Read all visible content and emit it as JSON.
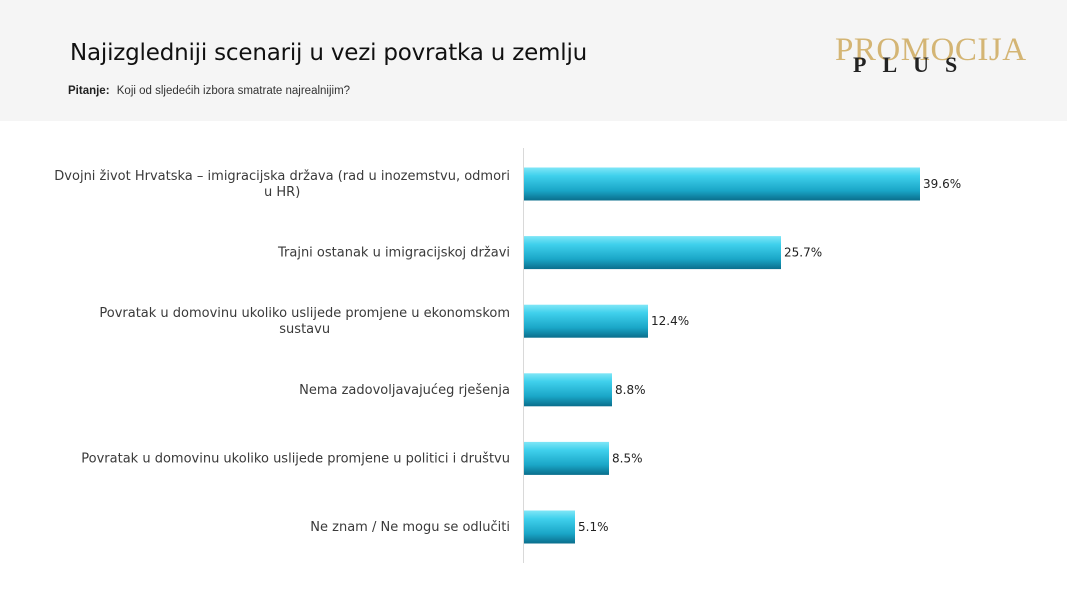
{
  "header": {
    "title": "Najizgledniji scenarij u vezi povratka u zemlju",
    "question_label": "Pitanje:",
    "question_text": "Koji od sljedećih izbora smatrate najrealnijim?"
  },
  "logo": {
    "main": "PROMOCIJA",
    "sub": "PLUS"
  },
  "colors": {
    "bar_light": "#3fd0ec",
    "bar_dark": "#0a6e8c",
    "header_bg": "#f5f5f5",
    "logo_gold": "#d4b574"
  },
  "chart_data": {
    "type": "bar",
    "orientation": "horizontal",
    "title": "Najizgledniji scenarij u vezi povratka u zemlju",
    "categories": [
      [
        "Dvojni život Hrvatska – imigracijska država (rad u inozemstvu, odmori",
        "u HR)"
      ],
      [
        "Trajni ostanak u imigracijskoj državi"
      ],
      [
        "Povratak u domovinu ukoliko uslijede promjene u ekonomskom",
        "sustavu"
      ],
      [
        "Nema zadovoljavajućeg rješenja"
      ],
      [
        "Povratak u domovinu ukoliko uslijede promjene u politici i društvu"
      ],
      [
        "Ne znam / Ne mogu se odlučiti"
      ]
    ],
    "values": [
      39.6,
      25.7,
      12.4,
      8.8,
      8.5,
      5.1
    ],
    "value_labels": [
      "39.6%",
      "25.7%",
      "12.4%",
      "8.8%",
      "8.5%",
      "5.1%"
    ],
    "unit": "%",
    "xlim": [
      0,
      40
    ]
  }
}
